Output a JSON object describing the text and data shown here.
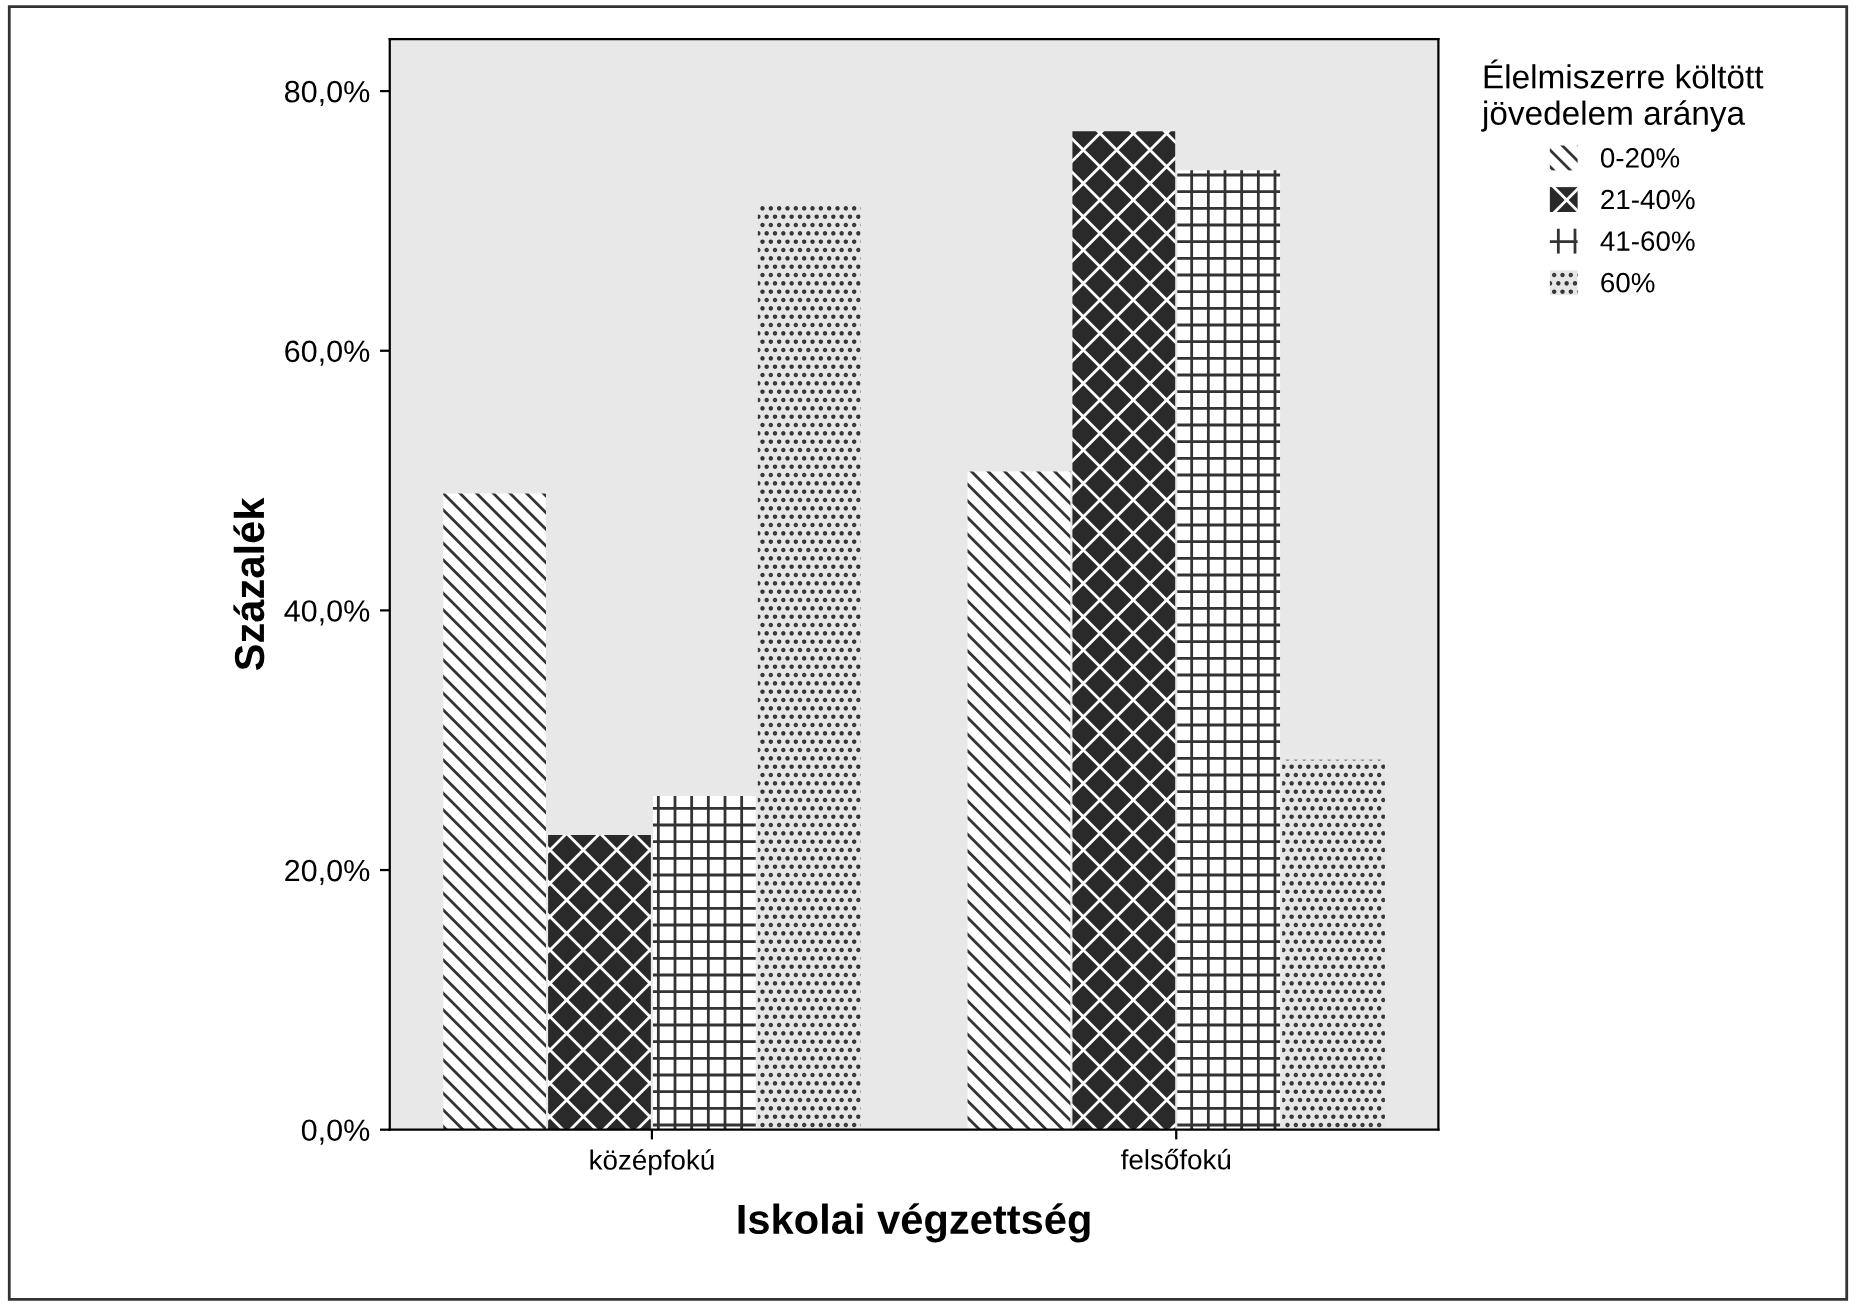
{
  "chart_data": {
    "type": "bar",
    "xlabel": "Iskolai végzettség",
    "ylabel": "Százalék",
    "legend_title": "Élelmiszerre költött\njövedelem aránya",
    "categories": [
      "középfokú",
      "felsőfokú"
    ],
    "series": [
      {
        "name": "0-20%",
        "color": "#ffffff",
        "values": [
          49.0,
          50.7
        ]
      },
      {
        "name": "21-40%",
        "color": "#2a2a2a",
        "values": [
          22.7,
          76.9
        ]
      },
      {
        "name": "41-60%",
        "color": "#ffffff",
        "values": [
          25.7,
          73.9
        ]
      },
      {
        "name": "60%",
        "color": "#e6e6e6",
        "values": [
          71.2,
          28.5
        ]
      }
    ],
    "ylim": [
      0,
      84
    ],
    "yticks": [
      {
        "value": 0,
        "label": "0,0%"
      },
      {
        "value": 20,
        "label": "20,0%"
      },
      {
        "value": 40,
        "label": "40,0%"
      },
      {
        "value": 60,
        "label": "60,0%"
      },
      {
        "value": 80,
        "label": "80,0%"
      }
    ],
    "legend": "top right",
    "grid": false
  }
}
